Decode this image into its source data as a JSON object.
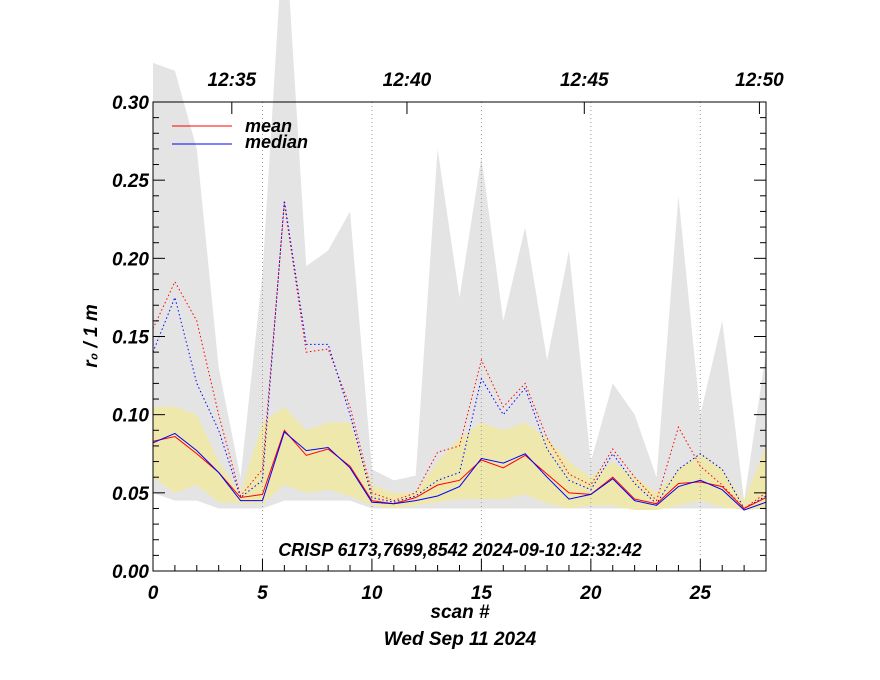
{
  "chart_data": {
    "type": "line",
    "ylabel": "r₀ / 1 m",
    "xlabel": "scan #",
    "date_label": "Wed Sep 11 2024",
    "annotation": "CRISP 6173,7699,8542 2024-09-10 12:32:42",
    "xlim": [
      0,
      28
    ],
    "ylim": [
      0.0,
      0.3
    ],
    "x_ticks": [
      0,
      5,
      10,
      15,
      20,
      25
    ],
    "x_tick_labels": [
      "0",
      "5",
      "10",
      "15",
      "20",
      "25"
    ],
    "y_ticks": [
      0.0,
      0.05,
      0.1,
      0.15,
      0.2,
      0.25,
      0.3
    ],
    "y_tick_labels": [
      "0.00",
      "0.05",
      "0.10",
      "0.15",
      "0.20",
      "0.25",
      "0.30"
    ],
    "top_axis": {
      "tick_positions": [
        3.6,
        11.6,
        19.7,
        27.7
      ],
      "tick_labels": [
        "12:35",
        "12:40",
        "12:45",
        "12:50"
      ]
    },
    "x": [
      0,
      1,
      2,
      3,
      4,
      5,
      6,
      7,
      8,
      9,
      10,
      11,
      12,
      13,
      14,
      15,
      16,
      17,
      18,
      19,
      20,
      21,
      22,
      23,
      24,
      25,
      26,
      27,
      28
    ],
    "gray_band": {
      "upper": [
        0.325,
        0.32,
        0.27,
        0.13,
        0.06,
        0.19,
        0.42,
        0.195,
        0.205,
        0.23,
        0.065,
        0.058,
        0.061,
        0.27,
        0.175,
        0.265,
        0.16,
        0.22,
        0.135,
        0.205,
        0.07,
        0.12,
        0.1,
        0.06,
        0.24,
        0.1,
        0.16,
        0.045,
        0.14
      ],
      "lower": [
        0.05,
        0.045,
        0.045,
        0.04,
        0.04,
        0.04,
        0.045,
        0.045,
        0.045,
        0.045,
        0.04,
        0.04,
        0.04,
        0.04,
        0.04,
        0.04,
        0.04,
        0.04,
        0.04,
        0.04,
        0.04,
        0.04,
        0.04,
        0.04,
        0.04,
        0.04,
        0.04,
        0.04,
        0.04
      ]
    },
    "yellow_band": {
      "upper": [
        0.105,
        0.105,
        0.1,
        0.07,
        0.05,
        0.095,
        0.105,
        0.09,
        0.095,
        0.095,
        0.055,
        0.05,
        0.05,
        0.07,
        0.085,
        0.095,
        0.09,
        0.095,
        0.085,
        0.07,
        0.06,
        0.07,
        0.06,
        0.05,
        0.065,
        0.075,
        0.065,
        0.045,
        0.08
      ],
      "lower": [
        0.06,
        0.05,
        0.055,
        0.044,
        0.043,
        0.043,
        0.055,
        0.05,
        0.052,
        0.048,
        0.042,
        0.04,
        0.042,
        0.044,
        0.046,
        0.046,
        0.046,
        0.049,
        0.043,
        0.04,
        0.042,
        0.042,
        0.039,
        0.039,
        0.042,
        0.045,
        0.041,
        0.039,
        0.04
      ]
    },
    "series": [
      {
        "name": "mean",
        "style": "solid",
        "color": "#ff0000",
        "values": [
          0.083,
          0.086,
          0.075,
          0.063,
          0.047,
          0.049,
          0.09,
          0.074,
          0.078,
          0.067,
          0.045,
          0.043,
          0.047,
          0.055,
          0.058,
          0.071,
          0.066,
          0.074,
          0.062,
          0.05,
          0.049,
          0.06,
          0.046,
          0.043,
          0.056,
          0.057,
          0.054,
          0.04,
          0.047
        ]
      },
      {
        "name": "median",
        "style": "solid",
        "color": "#0000ff",
        "values": [
          0.082,
          0.088,
          0.077,
          0.063,
          0.045,
          0.045,
          0.089,
          0.077,
          0.079,
          0.066,
          0.044,
          0.043,
          0.045,
          0.048,
          0.054,
          0.072,
          0.069,
          0.075,
          0.06,
          0.046,
          0.049,
          0.059,
          0.045,
          0.042,
          0.054,
          0.058,
          0.052,
          0.039,
          0.044
        ]
      },
      {
        "name": "mean_dotted",
        "style": "dotted",
        "color": "#ff0000",
        "values": [
          0.155,
          0.185,
          0.16,
          0.1,
          0.048,
          0.065,
          0.235,
          0.14,
          0.142,
          0.105,
          0.05,
          0.045,
          0.05,
          0.076,
          0.08,
          0.135,
          0.105,
          0.12,
          0.085,
          0.062,
          0.055,
          0.078,
          0.06,
          0.045,
          0.092,
          0.067,
          0.055,
          0.04,
          0.05
        ]
      },
      {
        "name": "median_dotted",
        "style": "dotted",
        "color": "#0000ff",
        "values": [
          0.14,
          0.175,
          0.12,
          0.09,
          0.047,
          0.058,
          0.237,
          0.145,
          0.145,
          0.1,
          0.047,
          0.044,
          0.048,
          0.058,
          0.063,
          0.123,
          0.1,
          0.117,
          0.078,
          0.058,
          0.052,
          0.075,
          0.056,
          0.043,
          0.065,
          0.075,
          0.065,
          0.04,
          0.048
        ]
      }
    ],
    "legend": {
      "position": "top-left",
      "entries": [
        {
          "label": "mean",
          "color": "#ff0000"
        },
        {
          "label": "median",
          "color": "#0000ff"
        }
      ]
    },
    "colors": {
      "gray_band": "#e4e4e4",
      "yellow_band": "#efe8ad",
      "mean": "#ff0000",
      "median": "#0000ff",
      "grid": "#9a9a9a",
      "axis": "#000000"
    }
  }
}
